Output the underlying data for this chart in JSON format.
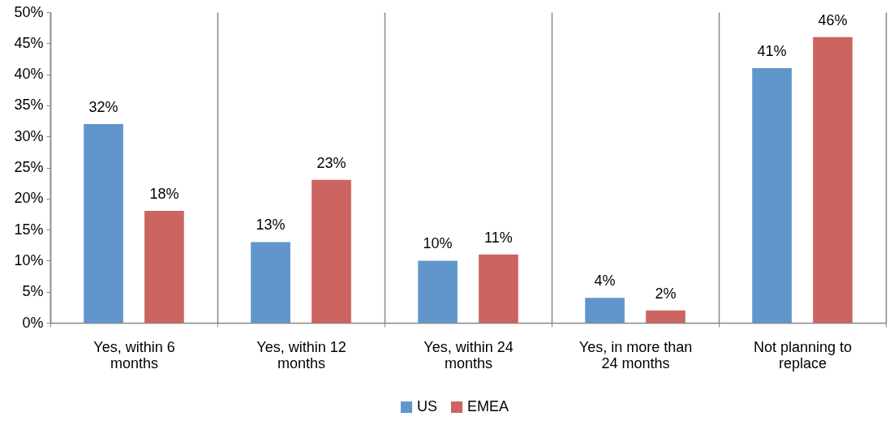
{
  "chart_data": {
    "type": "bar",
    "categories": [
      "Yes, within 6 months",
      "Yes, within 12 months",
      "Yes, within 24 months",
      "Yes, in more than 24 months",
      "Not planning to replace"
    ],
    "series": [
      {
        "name": "US",
        "color": "#6096cb",
        "values": [
          32,
          13,
          10,
          4,
          41
        ],
        "value_labels": [
          "32%",
          "13%",
          "10%",
          "4%",
          "41%"
        ]
      },
      {
        "name": "EMEA",
        "color": "#cc6560",
        "values": [
          18,
          23,
          11,
          2,
          46
        ],
        "value_labels": [
          "18%",
          "23%",
          "11%",
          "2%",
          "46%"
        ]
      }
    ],
    "ylim": [
      0,
      50
    ],
    "yticks": [
      {
        "value": 0,
        "label": "0%"
      },
      {
        "value": 5,
        "label": "5%"
      },
      {
        "value": 10,
        "label": "10%"
      },
      {
        "value": 15,
        "label": "15%"
      },
      {
        "value": 20,
        "label": "20%"
      },
      {
        "value": 25,
        "label": "25%"
      },
      {
        "value": 30,
        "label": "30%"
      },
      {
        "value": 35,
        "label": "35%"
      },
      {
        "value": 40,
        "label": "40%"
      },
      {
        "value": 45,
        "label": "45%"
      },
      {
        "value": 50,
        "label": "50%"
      }
    ],
    "grid": "x",
    "legend": "bottom"
  }
}
